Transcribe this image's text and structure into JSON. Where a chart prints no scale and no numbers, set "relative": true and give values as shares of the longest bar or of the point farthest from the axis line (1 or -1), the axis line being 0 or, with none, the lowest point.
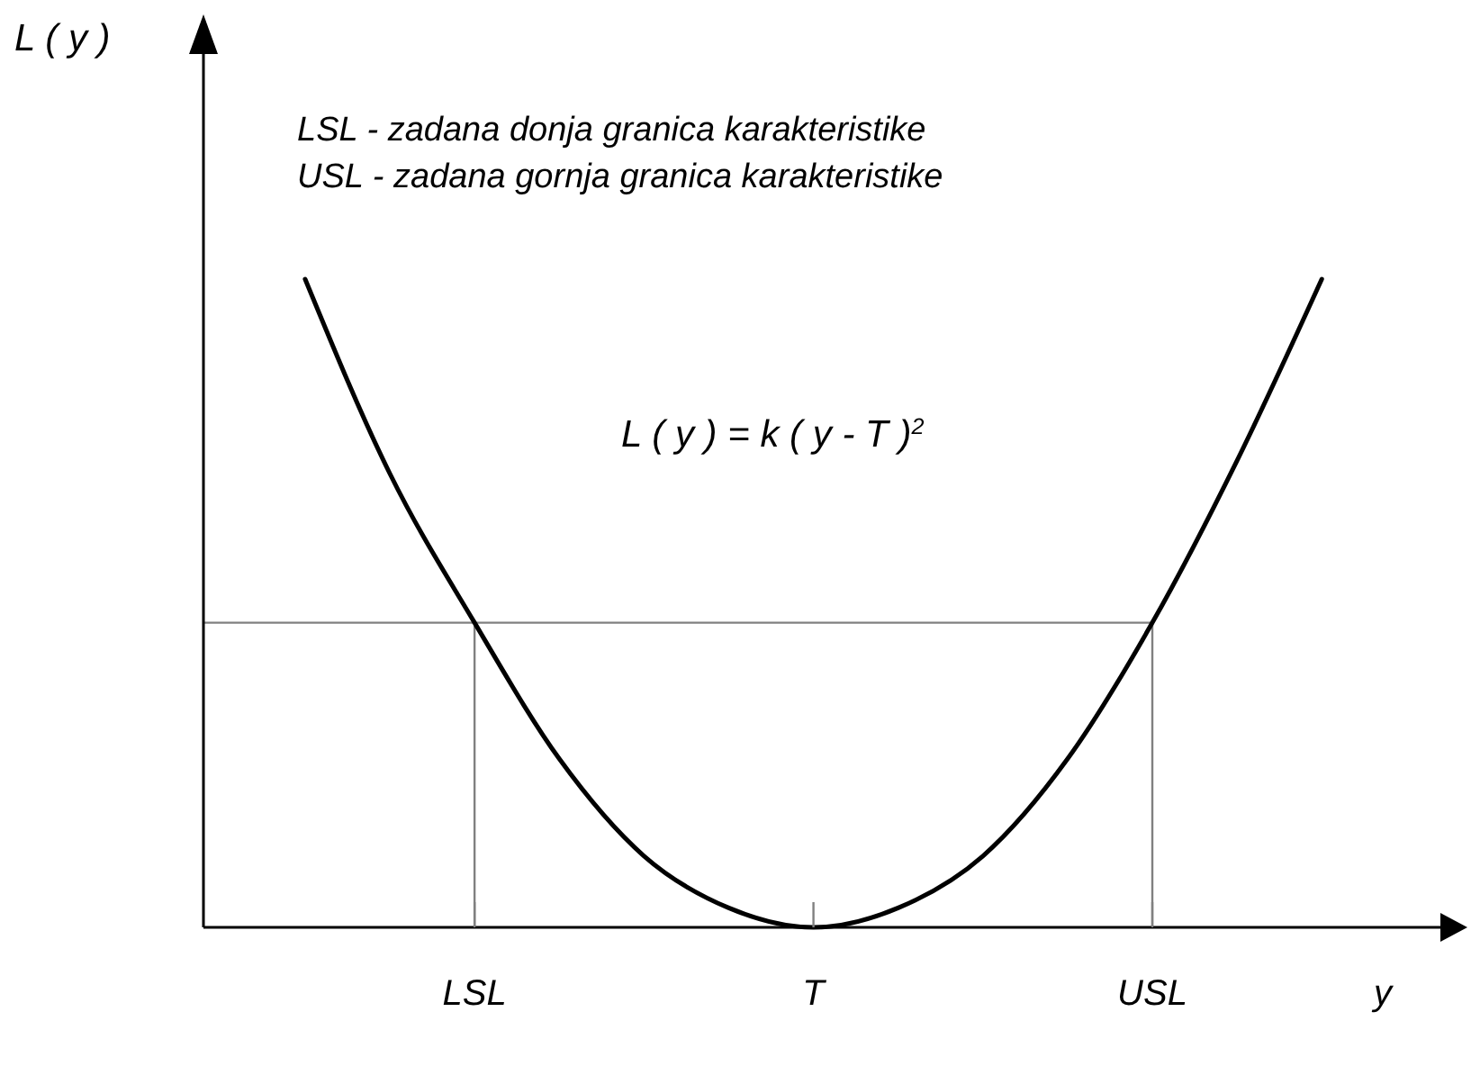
{
  "chart_data": {
    "type": "line",
    "relative": true,
    "xlabel": "y",
    "categories": [
      null,
      null,
      "LSL",
      null,
      null,
      null,
      "T",
      null,
      null,
      null,
      "USL",
      null,
      null
    ],
    "series": [
      {
        "color": "#000000",
        "values": [
          1,
          0.7,
          0.47,
          0.26,
          0.11,
          0.03,
          0,
          0.03,
          0.11,
          0.26,
          0.47,
          0.72,
          1
        ]
      }
    ],
    "ref_lines": [
      {
        "axis": "x",
        "value": "LSL",
        "color": "#808080"
      },
      {
        "axis": "x",
        "value": "USL",
        "color": "#808080"
      },
      {
        "axis": "y",
        "value": 0.47,
        "color": "#808080"
      }
    ],
    "annotations": [
      "LSL - zadana donja granica karakteristike",
      "USL - zadana gornja granica karakteristike",
      "L ( y ) = k ( y - T )$^{2}$",
      "L ( y )"
    ],
    "grid": false,
    "line_style": "solid"
  }
}
